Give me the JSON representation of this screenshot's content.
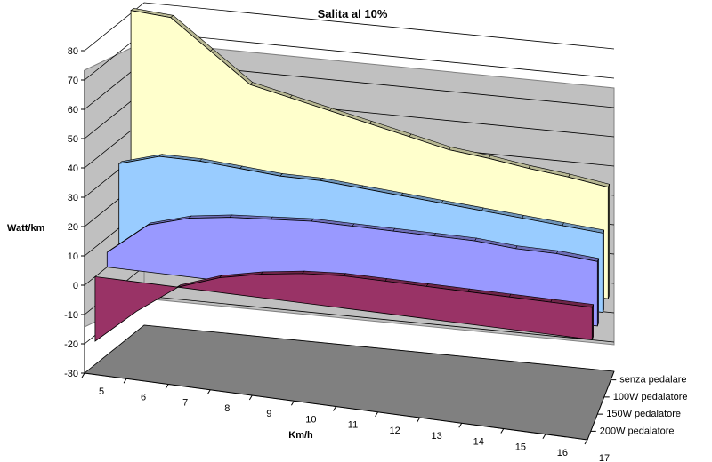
{
  "chart_data": {
    "type": "area",
    "title": "Salita  al 10%",
    "xlabel": "Km/h",
    "ylabel": "Watt/km",
    "ylim": [
      -30,
      80
    ],
    "yticks": [
      "80",
      "70",
      "60",
      "50",
      "40",
      "30",
      "20",
      "10",
      "0",
      "-10",
      "-20",
      "-30"
    ],
    "x": [
      "5",
      "6",
      "7",
      "8",
      "9",
      "10",
      "11",
      "12",
      "13",
      "14",
      "15",
      "16",
      "17"
    ],
    "series": [
      {
        "name": "senza pedalare",
        "color": "#ffffcc",
        "values": [
          81,
          80,
          70,
          60,
          57,
          54,
          51,
          48,
          45,
          43.5,
          41.5,
          40,
          38
        ]
      },
      {
        "name": "100W pedalatore",
        "color": "#99ccff",
        "values": [
          32,
          36,
          36,
          35,
          34,
          34,
          33,
          32,
          31,
          30,
          29,
          28,
          27
        ]
      },
      {
        "name": "150W pedalatore",
        "color": "#9999ff",
        "values": [
          5,
          16,
          20,
          22,
          23,
          24,
          24,
          24,
          24,
          24,
          23,
          23,
          22
        ]
      },
      {
        "name": "200W pedalatore",
        "color": "#993366",
        "values": [
          -22,
          -10,
          0,
          5,
          8,
          10,
          11,
          11,
          11,
          11,
          11,
          11,
          11
        ]
      }
    ],
    "legend_position": "right",
    "grid": true
  }
}
